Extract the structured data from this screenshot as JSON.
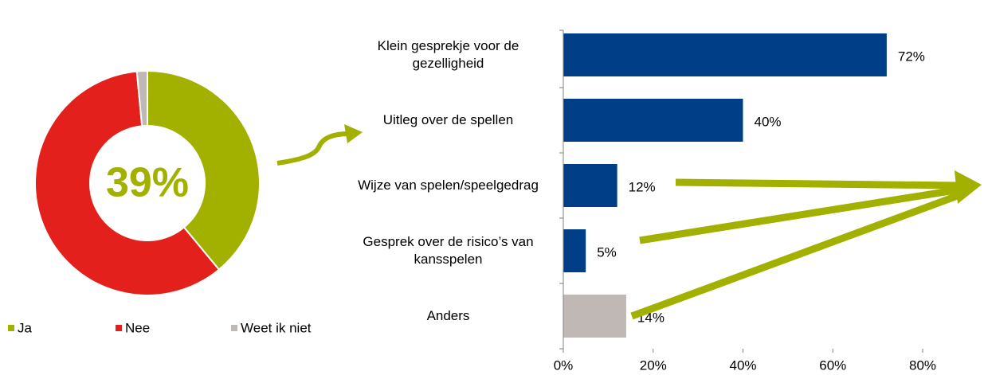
{
  "chart_data": [
    {
      "type": "donut",
      "categories": [
        "Ja",
        "Nee",
        "Weet ik niet"
      ],
      "values": [
        39,
        59.5,
        1.5
      ],
      "colors": [
        "#a2b000",
        "#e3201b",
        "#bfb8b4"
      ],
      "center_label": "39%",
      "legend": "bottom"
    },
    {
      "type": "hbar",
      "categories": [
        "Klein gesprekje voor de gezelligheid",
        "Uitleg over de spellen",
        "Wijze van spelen/speelgedrag",
        "Gesprek over de risico’s van kansspelen",
        "Anders"
      ],
      "values": [
        72,
        40,
        12,
        5,
        14
      ],
      "value_labels": [
        "72%",
        "40%",
        "12%",
        "5%",
        "14%"
      ],
      "colors": [
        "#003f87",
        "#003f87",
        "#003f87",
        "#003f87",
        "#bfb8b4"
      ],
      "xlim": [
        0,
        80
      ],
      "xticks": [
        {
          "value": 0,
          "label": "0%"
        },
        {
          "value": 20,
          "label": "20%"
        },
        {
          "value": 40,
          "label": "40%"
        },
        {
          "value": 60,
          "label": "60%"
        },
        {
          "value": 80,
          "label": "80%"
        }
      ]
    }
  ]
}
